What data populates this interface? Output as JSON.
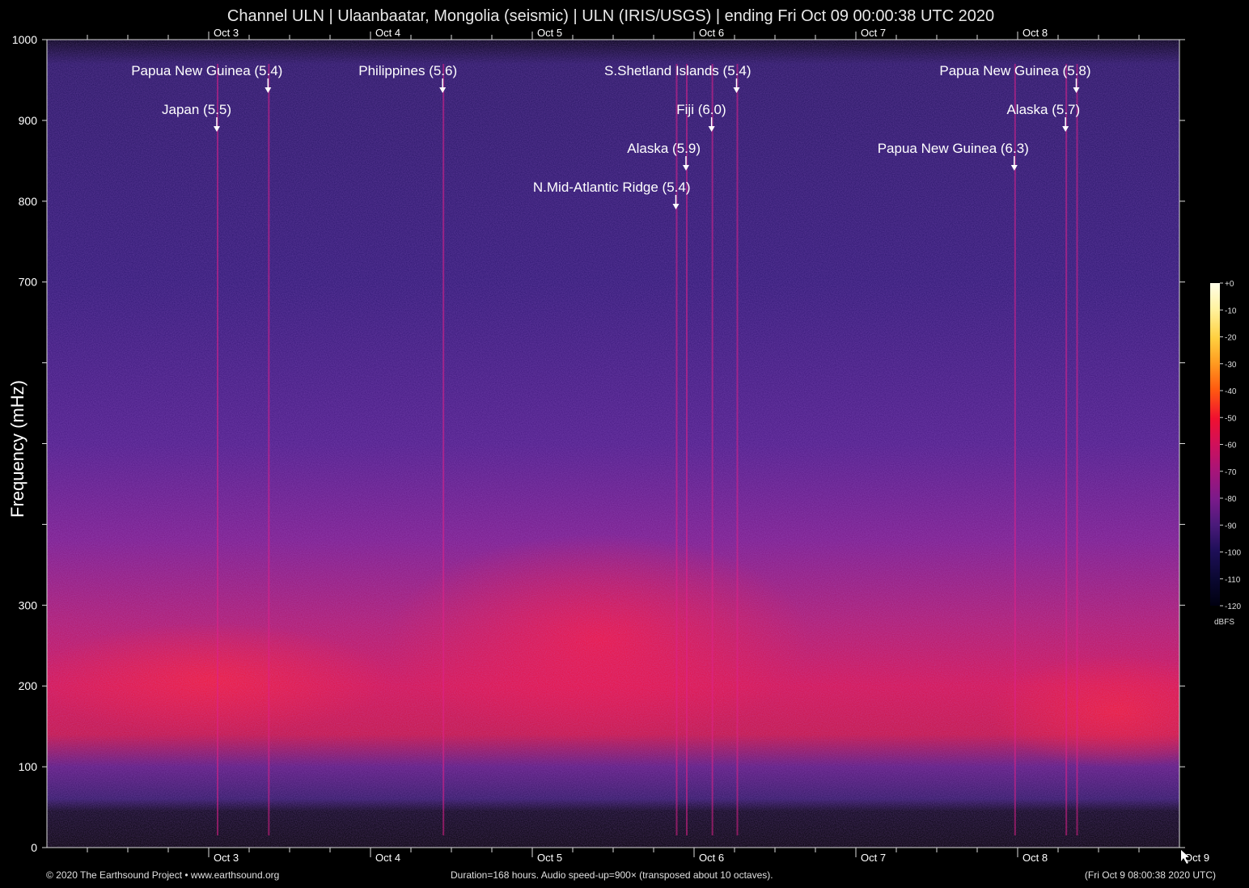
{
  "title": "Channel ULN | Ulaanbaatar, Mongolia (seismic) | ULN (IRIS/USGS) | ending Fri Oct 09 00:00:38 UTC 2020",
  "footer": {
    "left": "© 2020 The Earthsound Project • www.earthsound.org",
    "center": "Duration=168 hours. Audio speed-up=900× (transposed about 10 octaves).",
    "right": "(Fri Oct  9 08:00:38 2020 UTC)"
  },
  "chart_data": {
    "type": "heatmap",
    "title": "Channel ULN | Ulaanbaatar, Mongolia (seismic) | ULN (IRIS/USGS) | ending Fri Oct 09 00:00:38 UTC 2020",
    "ylabel": "Frequency (mHz)",
    "xlabel": "",
    "ylim": [
      0,
      1000
    ],
    "y_ticks": [
      0,
      100,
      200,
      300,
      400,
      500,
      600,
      700,
      800,
      900,
      1000
    ],
    "y_tick_labels": [
      "0",
      "100",
      "200",
      "300",
      "",
      "",
      "",
      "700",
      "800",
      "900",
      "1000"
    ],
    "x_range_hours": [
      0,
      168
    ],
    "x_ticks_bottom": [
      {
        "hour": 24,
        "label": "Oct 3"
      },
      {
        "hour": 48,
        "label": "Oct 4"
      },
      {
        "hour": 72,
        "label": "Oct 5"
      },
      {
        "hour": 96,
        "label": "Oct 6"
      },
      {
        "hour": 120,
        "label": "Oct 7"
      },
      {
        "hour": 144,
        "label": "Oct 8"
      },
      {
        "hour": 168,
        "label": "Oct 9"
      }
    ],
    "x_ticks_top": [
      {
        "hour": 24,
        "label": "Oct 3"
      },
      {
        "hour": 48,
        "label": "Oct 4"
      },
      {
        "hour": 72,
        "label": "Oct 5"
      },
      {
        "hour": 96,
        "label": "Oct 6"
      },
      {
        "hour": 120,
        "label": "Oct 7"
      },
      {
        "hour": 144,
        "label": "Oct 8"
      }
    ],
    "colorbar": {
      "unit": "dBFS",
      "ticks": [
        0,
        -10,
        -20,
        -30,
        -40,
        -50,
        -60,
        -70,
        -80,
        -90,
        -100,
        -110,
        -120
      ],
      "labels": [
        "+0",
        "-10",
        "-20",
        "-30",
        "-40",
        "-50",
        "-60",
        "-70",
        "-80",
        "-90",
        "-100",
        "-110",
        "-120"
      ],
      "colors": [
        "#fffde8",
        "#fff3a0",
        "#ffd040",
        "#ff9a20",
        "#ff5a10",
        "#f01030",
        "#d0105a",
        "#a81478",
        "#7a1a8a",
        "#4a1a7a",
        "#1e0f58",
        "#0a0830",
        "#000010"
      ]
    },
    "events": [
      {
        "label": "Papua New Guinea (5.4)",
        "hour": 32.8,
        "level": 0
      },
      {
        "label": "Japan (5.5)",
        "hour": 25.2,
        "level": 1
      },
      {
        "label": "Philippines (5.6)",
        "hour": 58.7,
        "level": 0
      },
      {
        "label": "S.Shetland Islands (5.4)",
        "hour": 102.3,
        "level": 0
      },
      {
        "label": "Fiji (6.0)",
        "hour": 98.6,
        "level": 1
      },
      {
        "label": "Alaska (5.9)",
        "hour": 94.8,
        "level": 2
      },
      {
        "label": "N.Mid-Atlantic Ridge (5.4)",
        "hour": 93.3,
        "level": 3
      },
      {
        "label": "Papua New Guinea (5.8)",
        "hour": 152.7,
        "level": 0
      },
      {
        "label": "Alaska (5.7)",
        "hour": 151.1,
        "level": 1
      },
      {
        "label": "Papua New Guinea (6.3)",
        "hour": 143.5,
        "level": 2
      }
    ]
  }
}
